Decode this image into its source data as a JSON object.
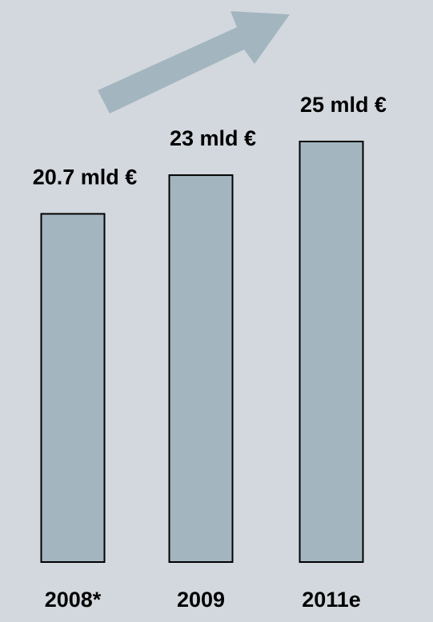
{
  "chart_data": {
    "type": "bar",
    "categories": [
      "2008*",
      "2009",
      "2011e"
    ],
    "values": [
      20.7,
      23,
      25
    ],
    "value_labels": [
      "20.7 mld €",
      "23 mld €",
      "25 mld €"
    ],
    "color": "#a3b6c0"
  }
}
